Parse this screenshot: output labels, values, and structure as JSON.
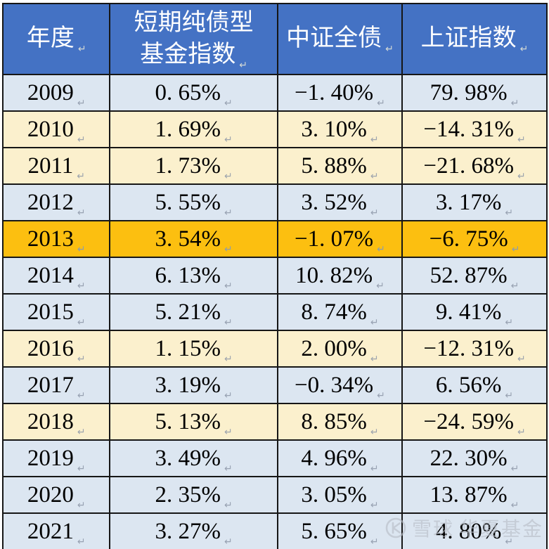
{
  "table": {
    "columns": [
      {
        "label": "年度"
      },
      {
        "label": "短期纯债型\n基金指数"
      },
      {
        "label": "中证全债"
      },
      {
        "label": "上证指数"
      }
    ],
    "rows": [
      {
        "year": "2009",
        "values": [
          "0. 65%",
          "−1. 40%",
          "79. 98%"
        ],
        "tone": "blue"
      },
      {
        "year": "2010",
        "values": [
          "1. 69%",
          "3. 10%",
          "−14. 31%"
        ],
        "tone": "cream"
      },
      {
        "year": "2011",
        "values": [
          "1. 73%",
          "5. 88%",
          "−21. 68%"
        ],
        "tone": "cream"
      },
      {
        "year": "2012",
        "values": [
          "5. 55%",
          "3. 52%",
          "3. 17%"
        ],
        "tone": "blue"
      },
      {
        "year": "2013",
        "values": [
          "3. 54%",
          "−1. 07%",
          "−6. 75%"
        ],
        "tone": "highlight"
      },
      {
        "year": "2014",
        "values": [
          "6. 13%",
          "10. 82%",
          "52. 87%"
        ],
        "tone": "blue"
      },
      {
        "year": "2015",
        "values": [
          "5. 21%",
          "8. 74%",
          "9. 41%"
        ],
        "tone": "blue"
      },
      {
        "year": "2016",
        "values": [
          "1. 15%",
          "2. 00%",
          "−12. 31%"
        ],
        "tone": "cream"
      },
      {
        "year": "2017",
        "values": [
          "3. 19%",
          "−0. 34%",
          "6. 56%"
        ],
        "tone": "blue"
      },
      {
        "year": "2018",
        "values": [
          "5. 13%",
          "8. 85%",
          "−24. 59%"
        ],
        "tone": "cream"
      },
      {
        "year": "2019",
        "values": [
          "3. 49%",
          "4. 96%",
          "22. 30%"
        ],
        "tone": "blue"
      },
      {
        "year": "2020",
        "values": [
          "2. 35%",
          "3. 05%",
          "13. 87%"
        ],
        "tone": "blue"
      },
      {
        "year": "2021",
        "values": [
          "3. 27%",
          "5. 65%",
          "4. 80%"
        ],
        "tone": "blue"
      }
    ]
  },
  "marks": {
    "cell_end": "↵"
  },
  "watermark": {
    "brand": "雪球",
    "account": "华夏基金"
  },
  "colors": {
    "header_bg": "#4472C4",
    "header_text": "#FFFFFF",
    "row_blue": "#DCE6F1",
    "row_cream": "#FBF0CD",
    "row_highlight": "#FCBF10",
    "border": "#161616",
    "body_text": "#000000",
    "watermark": "#B7BDC7"
  },
  "chart_data": {
    "type": "table",
    "title": "短期纯债型基金指数 vs 中证全债 vs 上证指数 年度收益率",
    "columns": [
      "年度",
      "短期纯债型基金指数",
      "中证全债",
      "上证指数"
    ],
    "years": [
      2009,
      2010,
      2011,
      2012,
      2013,
      2014,
      2015,
      2016,
      2017,
      2018,
      2019,
      2020,
      2021
    ],
    "series": [
      {
        "name": "短期纯债型基金指数",
        "values": [
          0.65,
          1.69,
          1.73,
          5.55,
          3.54,
          6.13,
          5.21,
          1.15,
          3.19,
          5.13,
          3.49,
          2.35,
          3.27
        ]
      },
      {
        "name": "中证全债",
        "values": [
          -1.4,
          3.1,
          5.88,
          3.52,
          -1.07,
          10.82,
          8.74,
          2.0,
          -0.34,
          8.85,
          4.96,
          3.05,
          5.65
        ]
      },
      {
        "name": "上证指数",
        "values": [
          79.98,
          -14.31,
          -21.68,
          3.17,
          -6.75,
          52.87,
          9.41,
          -12.31,
          6.56,
          -24.59,
          22.3,
          13.87,
          4.8
        ]
      }
    ],
    "unit": "%",
    "highlighted_year": 2013,
    "row_tones": [
      "blue",
      "cream",
      "cream",
      "blue",
      "highlight",
      "blue",
      "blue",
      "cream",
      "blue",
      "cream",
      "blue",
      "blue",
      "blue"
    ]
  }
}
